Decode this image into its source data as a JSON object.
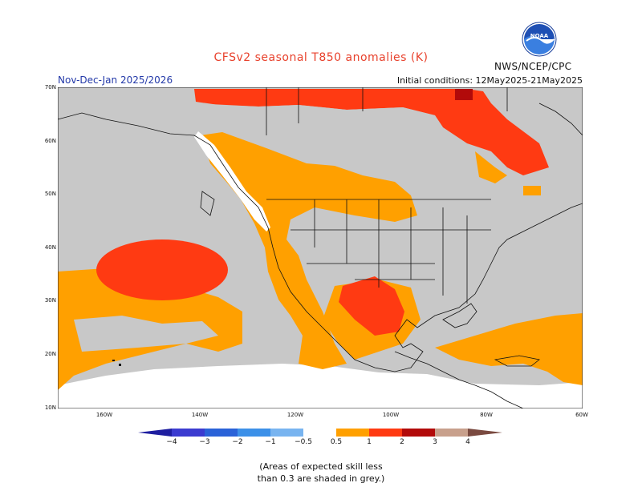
{
  "header": {
    "title": "CFSv2 seasonal T850 anomalies (K)",
    "org": "NWS/NCEP/CPC",
    "period": "Nov-Dec-Jan 2025/2026",
    "initial_conditions": "Initial conditions: 12May2025-21May2025",
    "logo_text": "NOAA"
  },
  "map": {
    "lat_labels": [
      "70N",
      "60N",
      "50N",
      "40N",
      "30N",
      "20N",
      "10N"
    ],
    "lon_labels": [
      "160W",
      "140W",
      "120W",
      "100W",
      "80W",
      "60W"
    ],
    "lat_range": [
      10,
      70
    ],
    "lon_range": [
      -170,
      -60
    ],
    "colors": {
      "ocean_low_skill": "#c8c8c8",
      "land_low_skill": "#c8c8c8",
      "neutral": "#ffffff",
      "orange": "#ffa000",
      "red": "#ff3a12",
      "dark_red": "#b20a0a",
      "coast": "#111111"
    }
  },
  "legend": {
    "labels": [
      "−4",
      "−3",
      "−2",
      "−1",
      "−0.5",
      "0.5",
      "1",
      "2",
      "3",
      "4"
    ],
    "colors": [
      "#1e1ea0",
      "#3b3bd0",
      "#2a62d8",
      "#3c90e8",
      "#78b4f0",
      "#ffffff",
      "#ffa000",
      "#ff3a12",
      "#b20a0a",
      "#c8a08c",
      "#7a4a40"
    ]
  },
  "note": {
    "line1": "(Areas of expected skill less",
    "line2": "than 0.3 are shaded in grey.)"
  }
}
